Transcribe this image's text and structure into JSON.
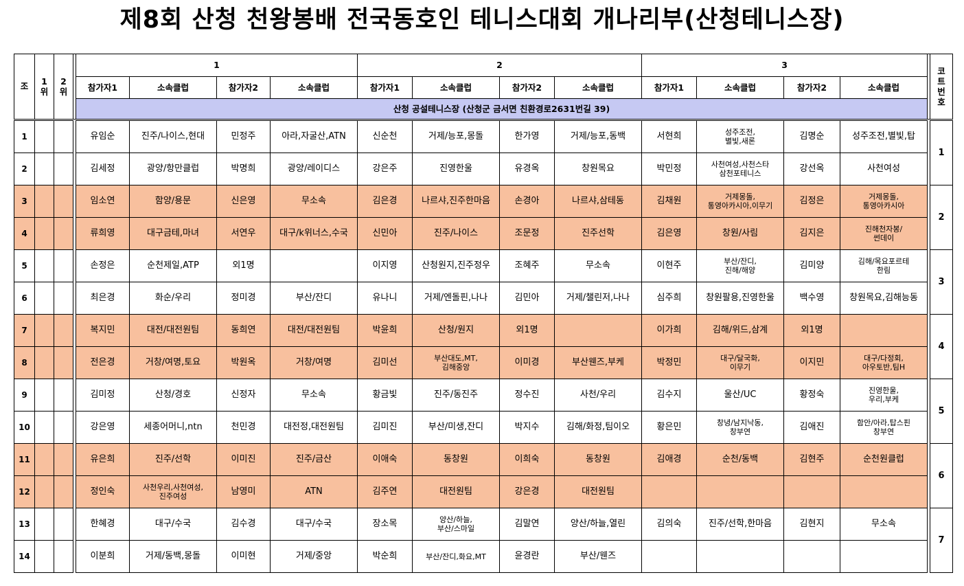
{
  "title": "제8회 산청 천왕봉배 전국동호인 테니스대회 개나리부(산청테니스장)",
  "header": {
    "jo": "조",
    "first": "1\n위",
    "second": "2\n위",
    "groups": [
      "1",
      "2",
      "3"
    ],
    "p1": "참가자1",
    "club": "소속클럽",
    "p2": "참가자2",
    "court": "코트번호",
    "venue": "산청 공설테니스장 (산청군 금서면 친환경로2631번길 39)"
  },
  "rows": [
    {
      "no": "1",
      "g": [
        [
          "유임순",
          "진주/나이스,현대",
          "민정주",
          "아라,자굴산,ATN"
        ],
        [
          "신순천",
          "거제/능포,몽돌",
          "한가영",
          "거제/능포,동백"
        ],
        [
          "서현희",
          "성주조전,\n별빛,새론",
          "김명순",
          "성주조전,별빛,탑"
        ]
      ]
    },
    {
      "no": "2",
      "g": [
        [
          "김세정",
          "광양/항만클럽",
          "박명희",
          "광양/레이디스"
        ],
        [
          "강은주",
          "진영한울",
          "유경옥",
          "창원목요"
        ],
        [
          "박민정",
          "사천여성,사천스타\n삼천포테니스",
          "강선옥",
          "사천여성"
        ]
      ]
    },
    {
      "no": "3",
      "g": [
        [
          "임소연",
          "함양/용문",
          "신은영",
          "무소속"
        ],
        [
          "김은경",
          "나르샤,진주한마음",
          "손경아",
          "나르샤,삼테동"
        ],
        [
          "김채원",
          "거제몽돌,\n통영아카시아,이무기",
          "김정은",
          "거제몽돌,\n통영아카시아"
        ]
      ]
    },
    {
      "no": "4",
      "g": [
        [
          "류희영",
          "대구금테,마녀",
          "서연우",
          "대구/k위너스,수국"
        ],
        [
          "신민아",
          "진주/나이스",
          "조문정",
          "진주선학"
        ],
        [
          "김은영",
          "창원/사림",
          "김지은",
          "진해천자봉/\n썬데이"
        ]
      ]
    },
    {
      "no": "5",
      "g": [
        [
          "손정은",
          "순천제일,ATP",
          "외1명",
          ""
        ],
        [
          "이지영",
          "산청원지,진주정우",
          "조혜주",
          "무소속"
        ],
        [
          "이현주",
          "부산/잔디,\n진해/해양",
          "김미양",
          "김해/목요포르테\n한림"
        ]
      ]
    },
    {
      "no": "6",
      "g": [
        [
          "최은경",
          "화순/우리",
          "정미경",
          "부산/잔디"
        ],
        [
          "유나니",
          "거제/엔돌핀,나나",
          "김민아",
          "거제/챌린저,나나"
        ],
        [
          "심주희",
          "창원팔용,진영한울",
          "백수영",
          "창원목요,김해능동"
        ]
      ]
    },
    {
      "no": "7",
      "g": [
        [
          "복지민",
          "대전/대전원팀",
          "동희연",
          "대전/대전원팀"
        ],
        [
          "박윤희",
          "산청/원지",
          "외1명",
          ""
        ],
        [
          "이가희",
          "김해/위드,삼계",
          "외1명",
          ""
        ]
      ]
    },
    {
      "no": "8",
      "g": [
        [
          "전은경",
          "거창/여명,토요",
          "박원옥",
          "거창/여명"
        ],
        [
          "김미선",
          "부산대도,MT,\n김해중앙",
          "이미경",
          "부산웬즈,부케"
        ],
        [
          "박정민",
          "대구/달국화,\n이무기",
          "이지민",
          "대구/다정회,\n아우토반,팀H"
        ]
      ]
    },
    {
      "no": "9",
      "g": [
        [
          "김미정",
          "산청/경호",
          "신정자",
          "무소속"
        ],
        [
          "황금빛",
          "진주/동진주",
          "정수진",
          "사천/우리"
        ],
        [
          "김수지",
          "울산/UC",
          "황정숙",
          "진영한울,\n우리,부케"
        ]
      ]
    },
    {
      "no": "10",
      "g": [
        [
          "강은영",
          "세종어머니,ntn",
          "천민경",
          "대전정,대전원팀"
        ],
        [
          "김미진",
          "부산/미생,잔디",
          "박지수",
          "김해/화정,팀이오"
        ],
        [
          "황은민",
          "창녕/남지낙동,\n창부연",
          "김애진",
          "함안/아라,탑스핀\n창부연"
        ]
      ]
    },
    {
      "no": "11",
      "g": [
        [
          "유은희",
          "진주/선학",
          "이미진",
          "진주/금산"
        ],
        [
          "이애숙",
          "동창원",
          "이희숙",
          "동창원"
        ],
        [
          "김애경",
          "순천/동백",
          "김현주",
          "순천원클럽"
        ]
      ]
    },
    {
      "no": "12",
      "g": [
        [
          "정인숙",
          "사천우리,사천여성,\n진주여성",
          "남영미",
          "ATN"
        ],
        [
          "김주연",
          "대전원팀",
          "강은경",
          "대전원팀"
        ],
        [
          "",
          "",
          "",
          ""
        ]
      ]
    },
    {
      "no": "13",
      "g": [
        [
          "한혜경",
          "대구/수국",
          "김수경",
          "대구/수국"
        ],
        [
          "장소목",
          "양산/하늘,\n부산/스마일",
          "김말연",
          "양산/하늘,열린"
        ],
        [
          "김의숙",
          "진주/선학,한마음",
          "김현지",
          "무소속"
        ]
      ]
    },
    {
      "no": "14",
      "g": [
        [
          "이분희",
          "거제/동백,몽돌",
          "이미현",
          "거제/중앙"
        ],
        [
          "박순희",
          "부산/잔디,화요,MT",
          "윤경란",
          "부산/웬즈"
        ],
        [
          "",
          "",
          "",
          ""
        ]
      ]
    }
  ],
  "courts": [
    "1",
    "2",
    "3",
    "4",
    "5",
    "6",
    "7"
  ],
  "colors": {
    "orange": "#f8c09e",
    "venue": "#c6c9f3"
  }
}
